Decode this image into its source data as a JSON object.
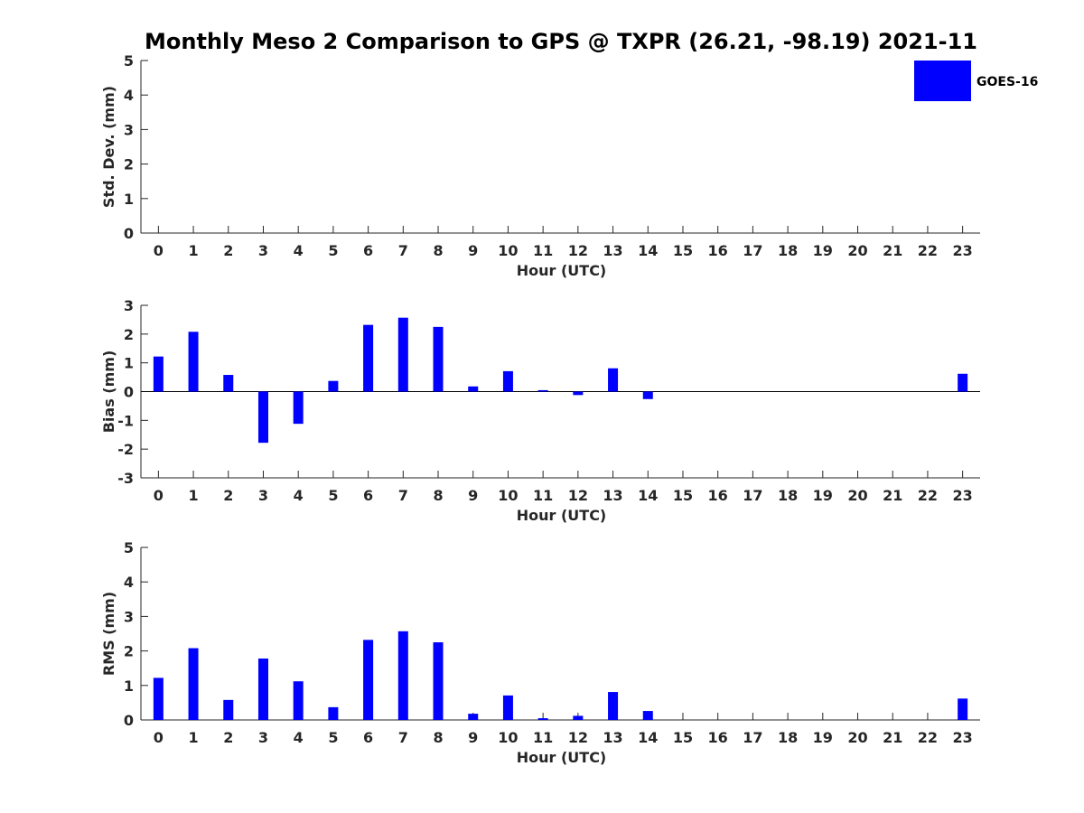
{
  "chart_data": {
    "type": "bar",
    "title": "Monthly Meso 2 Comparison to GPS @ TXPR (26.21, -98.19) 2021-11",
    "legend": {
      "entries": [
        "GOES-16"
      ],
      "placement": "top-right"
    },
    "series_color": "#0000ff",
    "categories": [
      "0",
      "1",
      "2",
      "3",
      "4",
      "5",
      "6",
      "7",
      "8",
      "9",
      "10",
      "11",
      "12",
      "13",
      "14",
      "15",
      "16",
      "17",
      "18",
      "19",
      "20",
      "21",
      "22",
      "23"
    ],
    "panels": [
      {
        "id": "std",
        "ylabel": "Std. Dev. (mm)",
        "xlabel": "Hour (UTC)",
        "ylim": [
          0,
          5
        ],
        "yticks": [
          "0",
          "1",
          "2",
          "3",
          "4",
          "5"
        ],
        "zero_line": false,
        "values": [
          0,
          0,
          0,
          0,
          0,
          0,
          0,
          0,
          0,
          0,
          0,
          0,
          0,
          0,
          0,
          0,
          0,
          0,
          0,
          0,
          0,
          0,
          0,
          0
        ]
      },
      {
        "id": "bias",
        "ylabel": "Bias (mm)",
        "xlabel": "Hour (UTC)",
        "ylim": [
          -3,
          3
        ],
        "yticks": [
          "-3",
          "-2",
          "-1",
          "0",
          "1",
          "2",
          "3"
        ],
        "zero_line": true,
        "values": [
          1.22,
          2.08,
          0.58,
          -1.78,
          -1.12,
          0.37,
          2.32,
          2.57,
          2.25,
          0.18,
          0.71,
          0.05,
          -0.12,
          0.81,
          -0.26,
          null,
          null,
          null,
          null,
          null,
          null,
          null,
          null,
          0.62
        ]
      },
      {
        "id": "rms",
        "ylabel": "RMS (mm)",
        "xlabel": "Hour (UTC)",
        "ylim": [
          0,
          5
        ],
        "yticks": [
          "0",
          "1",
          "2",
          "3",
          "4",
          "5"
        ],
        "zero_line": false,
        "values": [
          1.22,
          2.08,
          0.58,
          1.78,
          1.12,
          0.37,
          2.32,
          2.57,
          2.25,
          0.18,
          0.71,
          0.05,
          0.12,
          0.81,
          0.26,
          null,
          null,
          null,
          null,
          null,
          null,
          null,
          null,
          0.62
        ]
      }
    ]
  }
}
